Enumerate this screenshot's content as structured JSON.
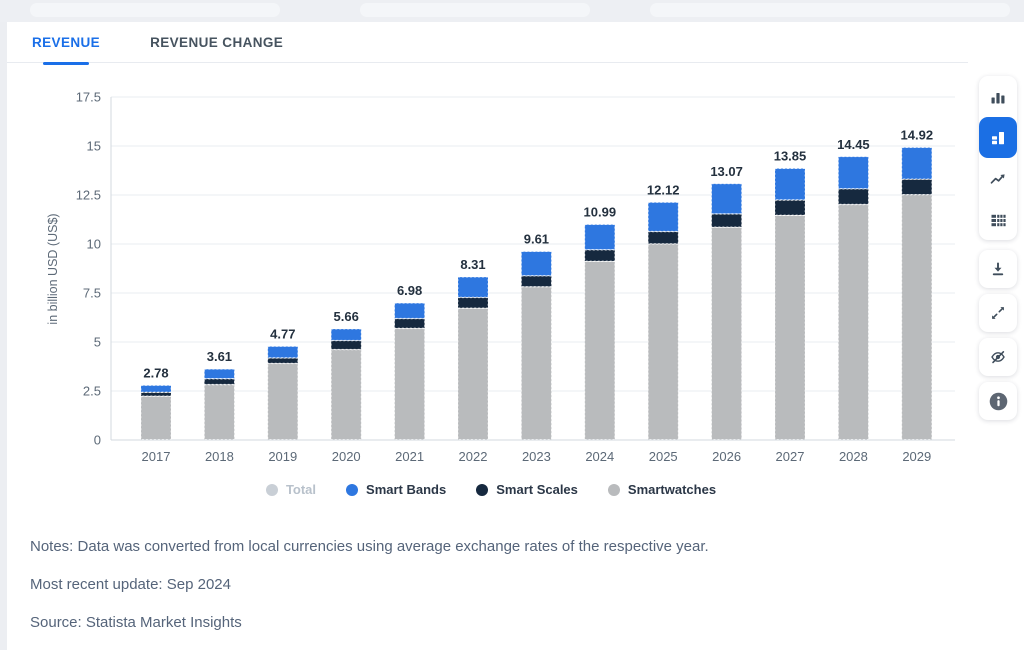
{
  "header": {
    "tabs": [
      {
        "label": "REVENUE",
        "active": true
      },
      {
        "label": "REVENUE CHANGE",
        "active": false
      }
    ]
  },
  "chart_data": {
    "type": "bar",
    "stacked": true,
    "ylabel": "in billion USD (US$)",
    "ylim": [
      0,
      17.5
    ],
    "yticks": [
      0,
      2.5,
      5,
      7.5,
      10,
      12.5,
      15,
      17.5
    ],
    "grid": true,
    "legend_position": "bottom",
    "categories": [
      "2017",
      "2018",
      "2019",
      "2020",
      "2021",
      "2022",
      "2023",
      "2024",
      "2025",
      "2026",
      "2027",
      "2028",
      "2029"
    ],
    "series": [
      {
        "name": "Smartwatches",
        "color": "#b9bbbd",
        "values": [
          2.22,
          2.81,
          3.89,
          4.6,
          5.68,
          6.71,
          7.8,
          9.1,
          9.99,
          10.84,
          11.45,
          12.0,
          12.5
        ]
      },
      {
        "name": "Smart Scales",
        "color": "#16293f",
        "values": [
          0.2,
          0.3,
          0.28,
          0.46,
          0.5,
          0.55,
          0.56,
          0.59,
          0.63,
          0.68,
          0.78,
          0.8,
          0.79
        ]
      },
      {
        "name": "Smart Bands",
        "color": "#2e77e0",
        "values": [
          0.36,
          0.5,
          0.6,
          0.6,
          0.8,
          1.05,
          1.25,
          1.3,
          1.5,
          1.55,
          1.62,
          1.65,
          1.63
        ]
      }
    ],
    "totals": [
      2.78,
      3.61,
      4.77,
      5.66,
      6.98,
      8.31,
      9.61,
      10.99,
      12.12,
      13.07,
      13.85,
      14.45,
      14.92
    ]
  },
  "legend": {
    "items": [
      {
        "label": "Total",
        "color": "#c9cfd6",
        "disabled": true
      },
      {
        "label": "Smart Bands",
        "color": "#2e77e0",
        "disabled": false
      },
      {
        "label": "Smart Scales",
        "color": "#16293f",
        "disabled": false
      },
      {
        "label": "Smartwatches",
        "color": "#b9bbbd",
        "disabled": false
      }
    ]
  },
  "toolbar": {
    "buttons": [
      {
        "name": "bar-chart",
        "active": false
      },
      {
        "name": "stacked-bar-chart",
        "active": true
      },
      {
        "name": "line-chart",
        "active": false
      },
      {
        "name": "data-table",
        "active": false
      },
      {
        "name": "download",
        "active": false
      },
      {
        "name": "fullscreen",
        "active": false
      },
      {
        "name": "hide-labels",
        "active": false
      },
      {
        "name": "info",
        "active": false
      }
    ],
    "accent_color": "#1b6fe4"
  },
  "notes": {
    "note": "Notes: Data was converted from local currencies using average exchange rates of the respective year.",
    "updated": "Most recent update: Sep 2024",
    "source": "Source: Statista Market Insights"
  }
}
